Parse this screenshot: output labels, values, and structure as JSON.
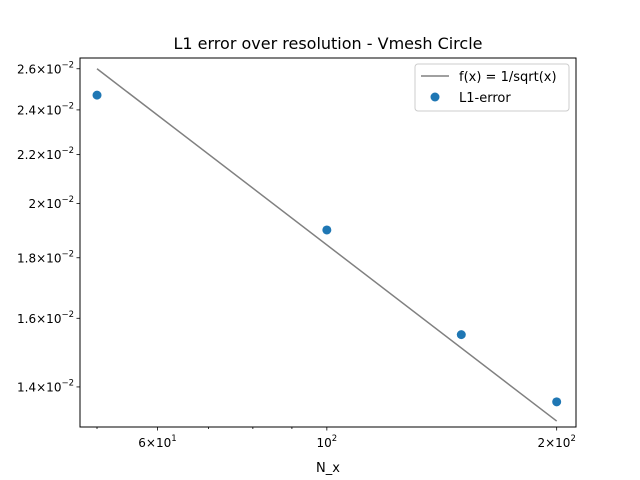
{
  "chart_data": {
    "type": "scatter",
    "title": "L1 error over resolution - Vmesh Circle",
    "xlabel": "N_x",
    "ylabel": "",
    "xscale": "log",
    "yscale": "log",
    "xlim": [
      47.5,
      212
    ],
    "ylim": [
      0.01295,
      0.02655
    ],
    "grid": false,
    "legend_position": "top-right",
    "x_ticks": [
      {
        "value": 60,
        "mantissa": "6",
        "exponent": "1"
      },
      {
        "value": 100,
        "mantissa": "",
        "exponent": "2"
      },
      {
        "value": 200,
        "mantissa": "2",
        "exponent": "2"
      }
    ],
    "y_ticks": [
      {
        "value": 0.014,
        "mantissa": "1.4",
        "exponent": "−2"
      },
      {
        "value": 0.016,
        "mantissa": "1.6",
        "exponent": "−2"
      },
      {
        "value": 0.018,
        "mantissa": "1.8",
        "exponent": "−2"
      },
      {
        "value": 0.02,
        "mantissa": "2",
        "exponent": "−2"
      },
      {
        "value": 0.022,
        "mantissa": "2.2",
        "exponent": "−2"
      },
      {
        "value": 0.024,
        "mantissa": "2.4",
        "exponent": "−2"
      },
      {
        "value": 0.026,
        "mantissa": "2.6",
        "exponent": "−2"
      }
    ],
    "series": [
      {
        "name": "f(x) = 1/sqrt(x)",
        "kind": "line",
        "color": "#808080",
        "x": [
          50,
          200
        ],
        "y": [
          0.026,
          0.0131
        ]
      },
      {
        "name": "L1-error",
        "kind": "scatter",
        "color": "#1f77b4",
        "x": [
          50,
          100,
          150,
          200
        ],
        "y": [
          0.0247,
          0.019,
          0.0155,
          0.0136
        ]
      }
    ]
  }
}
